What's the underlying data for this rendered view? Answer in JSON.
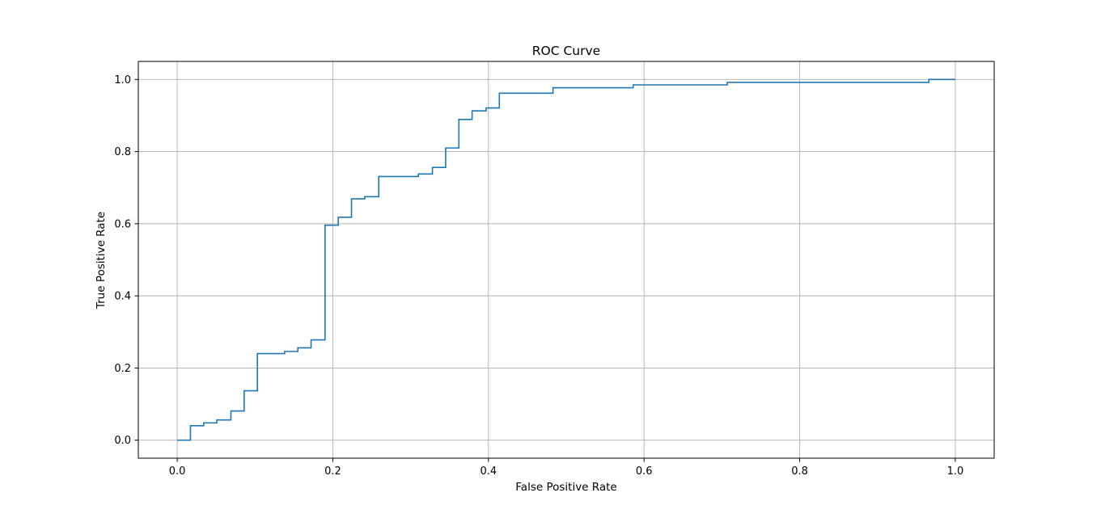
{
  "chart_data": {
    "type": "line",
    "title": "ROC Curve",
    "xlabel": "False Positive Rate",
    "ylabel": "True Positive Rate",
    "xlim": [
      -0.05,
      1.05
    ],
    "ylim": [
      -0.05,
      1.05
    ],
    "xticks": [
      0.0,
      0.2,
      0.4,
      0.6,
      0.8,
      1.0
    ],
    "yticks": [
      0.0,
      0.2,
      0.4,
      0.6,
      0.8,
      1.0
    ],
    "xtick_labels": [
      "0.0",
      "0.2",
      "0.4",
      "0.6",
      "0.8",
      "1.0"
    ],
    "ytick_labels": [
      "0.0",
      "0.2",
      "0.4",
      "0.6",
      "0.8",
      "1.0"
    ],
    "grid": true,
    "legend": false,
    "series": [
      {
        "color": "#1f77b4",
        "x": [
          0.0,
          0.017,
          0.017,
          0.034,
          0.034,
          0.051,
          0.051,
          0.069,
          0.069,
          0.086,
          0.086,
          0.103,
          0.103,
          0.138,
          0.138,
          0.155,
          0.155,
          0.172,
          0.172,
          0.19,
          0.19,
          0.207,
          0.207,
          0.224,
          0.224,
          0.241,
          0.241,
          0.259,
          0.259,
          0.31,
          0.31,
          0.328,
          0.328,
          0.345,
          0.345,
          0.362,
          0.362,
          0.379,
          0.379,
          0.397,
          0.397,
          0.414,
          0.414,
          0.483,
          0.483,
          0.586,
          0.586,
          0.707,
          0.707,
          0.966,
          0.966,
          1.0
        ],
        "y": [
          0.0,
          0.0,
          0.04,
          0.04,
          0.048,
          0.048,
          0.056,
          0.056,
          0.081,
          0.081,
          0.137,
          0.137,
          0.24,
          0.24,
          0.246,
          0.246,
          0.256,
          0.256,
          0.278,
          0.278,
          0.596,
          0.596,
          0.618,
          0.618,
          0.669,
          0.669,
          0.675,
          0.675,
          0.731,
          0.731,
          0.738,
          0.738,
          0.756,
          0.756,
          0.81,
          0.81,
          0.889,
          0.889,
          0.913,
          0.913,
          0.921,
          0.921,
          0.962,
          0.962,
          0.977,
          0.977,
          0.985,
          0.985,
          0.992,
          0.992,
          1.0,
          1.0
        ]
      }
    ]
  }
}
